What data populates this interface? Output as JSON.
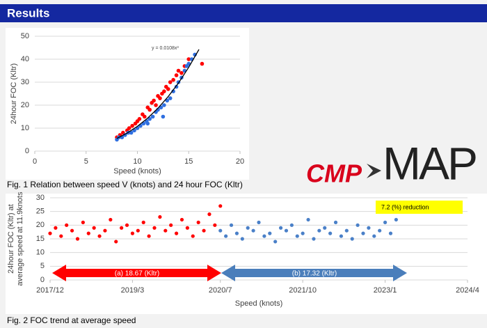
{
  "header": {
    "title": "Results"
  },
  "logo": {
    "left": "CMP",
    "right": "MAP"
  },
  "chart_data": [
    {
      "type": "scatter",
      "caption": "Fig. 1 Relation between speed V (knots) and 24 hour FOC (Kltr)",
      "x_label": "Speed (knots)",
      "y_label": "24hour FOC (Kltr)",
      "annotation": "y = 0.0108x³",
      "xlim": [
        0,
        20
      ],
      "xticks": [
        0,
        5,
        10,
        15,
        20
      ],
      "ylim": [
        0,
        50
      ],
      "yticks": [
        0,
        10,
        20,
        30,
        40,
        50
      ],
      "grid": true,
      "series": [
        {
          "name": null,
          "color": "#ff0000",
          "x": [
            8,
            8.3,
            8.6,
            9,
            9.2,
            9.5,
            9.8,
            10,
            10.2,
            10.5,
            10.7,
            11,
            11.2,
            11.4,
            11.6,
            11.8,
            12,
            12.2,
            12.4,
            12.6,
            12.8,
            13,
            13.2,
            13.5,
            13.8,
            14,
            14.3,
            14.6,
            15,
            16.3
          ],
          "values": [
            6,
            7,
            8,
            9,
            10,
            11,
            12,
            13,
            14,
            16,
            15,
            19,
            18,
            21,
            22,
            20,
            24,
            23,
            25,
            26,
            28,
            27,
            30,
            31,
            33,
            35,
            34,
            37,
            40,
            38
          ]
        },
        {
          "name": null,
          "color": "#2f6fe0",
          "x": [
            8,
            8.2,
            8.5,
            8.8,
            9.1,
            9.4,
            9.7,
            10,
            10.3,
            10.6,
            10.9,
            11.2,
            11.5,
            11.8,
            12,
            12.3,
            12.6,
            12.9,
            13.2,
            13.5,
            13.8,
            14,
            14.3,
            14.6,
            15,
            15.3,
            15.6,
            14.8,
            12.5,
            11
          ],
          "values": [
            5,
            6,
            6,
            7,
            8,
            8,
            9,
            10,
            11,
            12,
            13,
            14,
            15,
            17,
            18,
            19,
            20,
            22,
            23,
            26,
            28,
            30,
            32,
            35,
            38,
            40,
            42,
            37,
            15,
            12
          ]
        },
        {
          "name": null,
          "color": "#000000",
          "line": true,
          "x": [
            8,
            9,
            10,
            11,
            12,
            13,
            14,
            15,
            16
          ],
          "values": [
            5.53,
            7.87,
            10.8,
            14.37,
            18.66,
            23.73,
            29.64,
            36.45,
            44.24
          ]
        }
      ]
    },
    {
      "type": "scatter",
      "caption": "Fig. 2 FOC trend at average speed",
      "x_label": "Speed (knots)",
      "y_label": [
        "24hour FOC (Kltr) at",
        "average speed at 11.9knots"
      ],
      "annotations": [
        "(a) 18.67 (Kltr)",
        "(b) 17.32 (Kltr)",
        "7.2 (%) reduction"
      ],
      "xlim": [
        "2017/12",
        "2024/4"
      ],
      "xticks": [
        "2017/12",
        "2019/3",
        "2020/7",
        "2021/10",
        "2023/1",
        "2024/4"
      ],
      "ylim": [
        0,
        30
      ],
      "yticks": [
        0,
        5,
        10,
        15,
        20,
        25,
        30
      ],
      "grid": true,
      "series": [
        {
          "name": null,
          "color": "#ff0000",
          "x": [
            "2017/12",
            "2018/1",
            "2018/2",
            "2018/3",
            "2018/4",
            "2018/5",
            "2018/6",
            "2018/7",
            "2018/8",
            "2018/9",
            "2018/10",
            "2018/11",
            "2018/12",
            "2019/1",
            "2019/2",
            "2019/3",
            "2019/4",
            "2019/5",
            "2019/6",
            "2019/7",
            "2019/8",
            "2019/9",
            "2019/10",
            "2019/11",
            "2019/12",
            "2020/1",
            "2020/2",
            "2020/3",
            "2020/4",
            "2020/5",
            "2020/6",
            "2020/7"
          ],
          "values": [
            17,
            19,
            16,
            20,
            18,
            15,
            21,
            17,
            19,
            16,
            18,
            22,
            14,
            19,
            20,
            17,
            18,
            21,
            16,
            19,
            23,
            18,
            20,
            17,
            22,
            19,
            16,
            21,
            18,
            24,
            20,
            27
          ]
        },
        {
          "name": null,
          "color": "#4a80c8",
          "x": [
            "2020/7",
            "2020/8",
            "2020/9",
            "2020/10",
            "2020/11",
            "2020/12",
            "2021/1",
            "2021/2",
            "2021/3",
            "2021/4",
            "2021/5",
            "2021/6",
            "2021/7",
            "2021/8",
            "2021/9",
            "2021/10",
            "2021/11",
            "2021/12",
            "2022/1",
            "2022/2",
            "2022/3",
            "2022/4",
            "2022/5",
            "2022/6",
            "2022/7",
            "2022/8",
            "2022/9",
            "2022/10",
            "2022/11",
            "2022/12",
            "2023/1",
            "2023/2",
            "2023/3"
          ],
          "values": [
            18,
            16,
            20,
            17,
            15,
            19,
            18,
            21,
            16,
            17,
            14,
            19,
            18,
            20,
            16,
            17,
            22,
            15,
            18,
            19,
            17,
            21,
            16,
            18,
            15,
            20,
            17,
            19,
            16,
            18,
            21,
            17,
            22
          ]
        }
      ]
    }
  ]
}
